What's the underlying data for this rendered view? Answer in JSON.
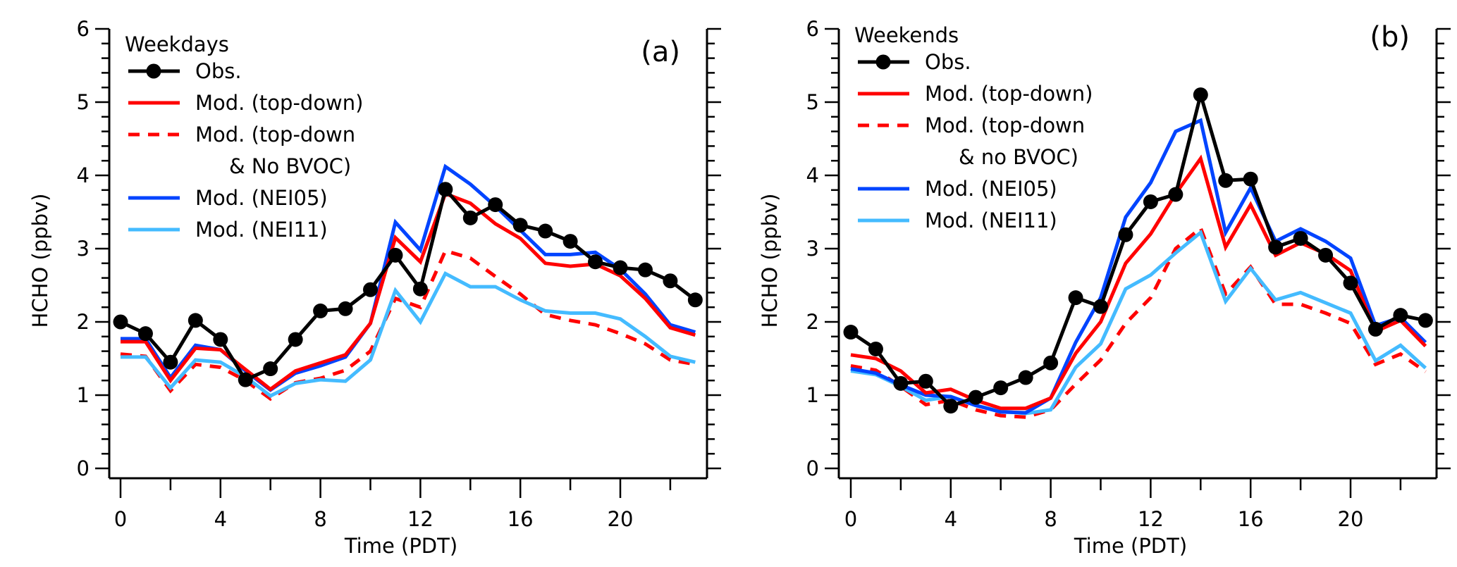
{
  "chart_data": [
    {
      "type": "line",
      "panel_label": "(a)",
      "legend_title": "Weekdays",
      "xlabel": "Time (PDT)",
      "ylabel": "HCHO (ppbv)",
      "xlim": [
        -0.3,
        23.5
      ],
      "ylim": [
        -0.1,
        6
      ],
      "xticks": [
        0,
        4,
        8,
        12,
        16,
        20
      ],
      "xtick_labels": [
        "0",
        "4",
        "8",
        "12",
        "16",
        "20"
      ],
      "yticks": [
        0,
        1,
        2,
        3,
        4,
        5,
        6
      ],
      "ytick_labels": [
        "0",
        "1",
        "2",
        "3",
        "4",
        "5",
        "6"
      ],
      "grid": false,
      "legend_position": "top-left",
      "x": [
        0,
        1,
        2,
        3,
        4,
        5,
        6,
        7,
        8,
        9,
        10,
        11,
        12,
        13,
        14,
        15,
        16,
        17,
        18,
        19,
        20,
        21,
        22,
        23
      ],
      "series": [
        {
          "name": "Obs.",
          "legend_lines": [
            "Obs."
          ],
          "color": "#000000",
          "style": "solid-marker",
          "values": [
            2.0,
            1.84,
            1.45,
            2.02,
            1.76,
            1.21,
            1.36,
            1.76,
            2.15,
            2.18,
            2.44,
            2.91,
            2.45,
            3.81,
            3.42,
            3.6,
            3.32,
            3.24,
            3.1,
            2.82,
            2.74,
            2.71,
            2.56,
            2.3
          ]
        },
        {
          "name": "Mod. (top-down)",
          "legend_lines": [
            "Mod. (top-down)"
          ],
          "color": "#ff0000",
          "style": "solid",
          "values": [
            1.73,
            1.73,
            1.2,
            1.64,
            1.62,
            1.35,
            1.08,
            1.33,
            1.44,
            1.55,
            1.98,
            3.15,
            2.82,
            3.75,
            3.62,
            3.34,
            3.14,
            2.8,
            2.76,
            2.79,
            2.63,
            2.32,
            1.92,
            1.82
          ]
        },
        {
          "name": "Mod. (top-down & No BVOC)",
          "legend_lines": [
            "Mod. (top-down",
            "& No BVOC)"
          ],
          "color": "#ff0000",
          "style": "dashed",
          "values": [
            1.56,
            1.53,
            1.06,
            1.42,
            1.38,
            1.2,
            0.95,
            1.17,
            1.23,
            1.34,
            1.6,
            2.32,
            2.2,
            2.97,
            2.87,
            2.62,
            2.38,
            2.1,
            2.02,
            1.96,
            1.84,
            1.7,
            1.48,
            1.42
          ]
        },
        {
          "name": "Mod. (NEI05)",
          "legend_lines": [
            "Mod. (NEI05)"
          ],
          "color": "#0044ff",
          "style": "solid",
          "values": [
            1.77,
            1.77,
            1.24,
            1.68,
            1.62,
            1.33,
            1.07,
            1.3,
            1.4,
            1.52,
            1.98,
            3.36,
            2.98,
            4.12,
            3.88,
            3.58,
            3.25,
            2.92,
            2.92,
            2.95,
            2.72,
            2.38,
            1.96,
            1.86
          ]
        },
        {
          "name": "Mod. (NEI11)",
          "legend_lines": [
            "Mod. (NEI11)"
          ],
          "color": "#44bbff",
          "style": "solid",
          "values": [
            1.52,
            1.52,
            1.1,
            1.48,
            1.45,
            1.25,
            0.99,
            1.16,
            1.21,
            1.19,
            1.48,
            2.43,
            2.0,
            2.66,
            2.48,
            2.48,
            2.3,
            2.15,
            2.12,
            2.12,
            2.04,
            1.8,
            1.53,
            1.45
          ]
        }
      ]
    },
    {
      "type": "line",
      "panel_label": "(b)",
      "legend_title": "Weekends",
      "xlabel": "Time (PDT)",
      "ylabel": "HCHO (ppbv)",
      "xlim": [
        -0.3,
        23.5
      ],
      "ylim": [
        -0.1,
        6
      ],
      "xticks": [
        0,
        4,
        8,
        12,
        16,
        20
      ],
      "xtick_labels": [
        "0",
        "4",
        "8",
        "12",
        "16",
        "20"
      ],
      "yticks": [
        0,
        1,
        2,
        3,
        4,
        5,
        6
      ],
      "ytick_labels": [
        "0",
        "1",
        "2",
        "3",
        "4",
        "5",
        "6"
      ],
      "grid": false,
      "legend_position": "top-left",
      "x": [
        0,
        1,
        2,
        3,
        4,
        5,
        6,
        7,
        8,
        9,
        10,
        11,
        12,
        13,
        14,
        15,
        16,
        17,
        18,
        19,
        20,
        21,
        22,
        23
      ],
      "series": [
        {
          "name": "Obs.",
          "legend_lines": [
            "Obs."
          ],
          "color": "#000000",
          "style": "solid-marker",
          "values": [
            1.86,
            1.63,
            1.16,
            1.19,
            0.85,
            0.97,
            1.1,
            1.24,
            1.44,
            2.33,
            2.21,
            3.19,
            3.64,
            3.74,
            5.1,
            3.93,
            3.95,
            3.02,
            3.14,
            2.91,
            2.53,
            1.9,
            2.09,
            2.02
          ]
        },
        {
          "name": "Mod. (top-down)",
          "legend_lines": [
            "Mod. (top-down)"
          ],
          "color": "#ff0000",
          "style": "solid",
          "values": [
            1.55,
            1.5,
            1.33,
            1.03,
            1.08,
            0.93,
            0.82,
            0.82,
            0.96,
            1.57,
            2.0,
            2.8,
            3.2,
            3.75,
            4.23,
            3.02,
            3.6,
            2.91,
            3.08,
            2.93,
            2.7,
            1.87,
            2.02,
            1.67
          ]
        },
        {
          "name": "Mod. (top-down & no BVOC)",
          "legend_lines": [
            "Mod. (top-down",
            "& no BVOC)"
          ],
          "color": "#ff0000",
          "style": "dashed",
          "values": [
            1.4,
            1.34,
            1.12,
            0.87,
            0.93,
            0.8,
            0.72,
            0.7,
            0.8,
            1.15,
            1.48,
            1.98,
            2.33,
            3.0,
            3.28,
            2.38,
            2.75,
            2.24,
            2.24,
            2.12,
            1.98,
            1.42,
            1.56,
            1.32
          ]
        },
        {
          "name": "Mod. (NEI05)",
          "legend_lines": [
            "Mod. (NEI05)"
          ],
          "color": "#0044ff",
          "style": "solid",
          "values": [
            1.36,
            1.3,
            1.14,
            1.0,
            0.98,
            0.86,
            0.77,
            0.76,
            0.96,
            1.72,
            2.33,
            3.43,
            3.9,
            4.6,
            4.75,
            3.22,
            3.83,
            3.1,
            3.27,
            3.1,
            2.87,
            1.95,
            2.06,
            1.72
          ]
        },
        {
          "name": "Mod. (NEI11)",
          "legend_lines": [
            "Mod. (NEI11)"
          ],
          "color": "#44bbff",
          "style": "solid",
          "values": [
            1.33,
            1.28,
            1.12,
            0.93,
            0.98,
            0.86,
            0.78,
            0.75,
            0.8,
            1.38,
            1.7,
            2.45,
            2.64,
            2.94,
            3.22,
            2.28,
            2.73,
            2.3,
            2.4,
            2.26,
            2.12,
            1.47,
            1.68,
            1.37
          ]
        }
      ]
    }
  ]
}
